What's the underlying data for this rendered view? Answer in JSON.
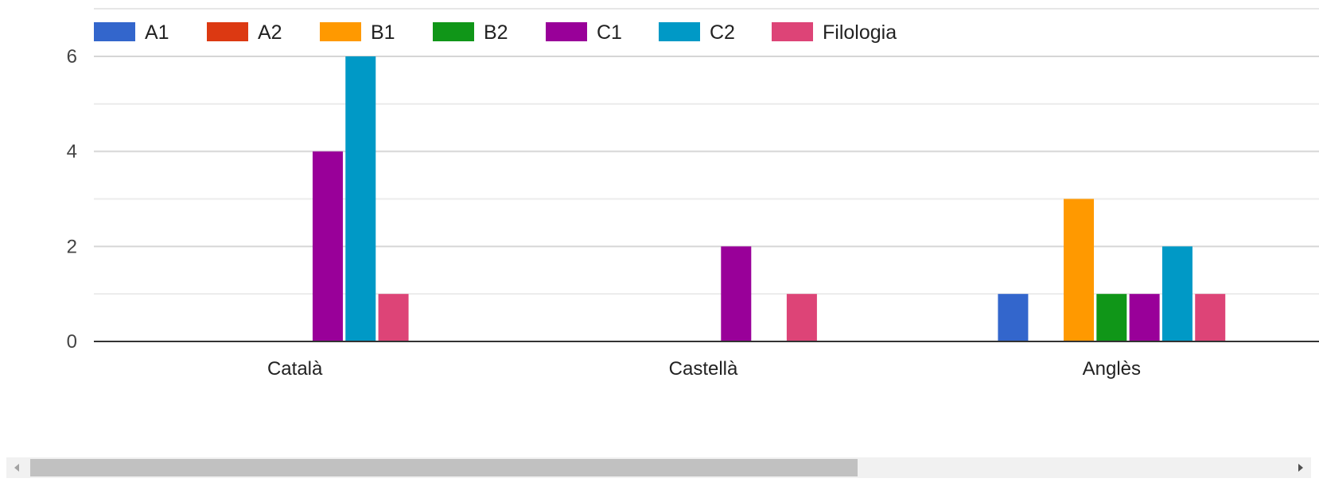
{
  "chart_data": {
    "type": "bar",
    "categories": [
      "Català",
      "Castellà",
      "Anglès"
    ],
    "series": [
      {
        "name": "A1",
        "color": "#3366cc",
        "values": [
          0,
          0,
          1
        ]
      },
      {
        "name": "A2",
        "color": "#dc3912",
        "values": [
          0,
          0,
          0
        ]
      },
      {
        "name": "B1",
        "color": "#ff9900",
        "values": [
          0,
          0,
          3
        ]
      },
      {
        "name": "B2",
        "color": "#109618",
        "values": [
          0,
          0,
          1
        ]
      },
      {
        "name": "C1",
        "color": "#990099",
        "values": [
          4,
          2,
          1
        ]
      },
      {
        "name": "C2",
        "color": "#0099c6",
        "values": [
          6,
          0,
          2
        ]
      },
      {
        "name": "Filologia",
        "color": "#dd4477",
        "values": [
          1,
          1,
          1
        ]
      }
    ],
    "y_ticks": [
      "0",
      "2",
      "4",
      "6"
    ],
    "ylim": [
      0,
      6
    ],
    "grid": true,
    "legend_position": "top-left",
    "title": "",
    "xlabel": "",
    "ylabel": ""
  },
  "scrollbar": {
    "left_icon": "arrow-left-icon",
    "right_icon": "arrow-right-icon"
  }
}
